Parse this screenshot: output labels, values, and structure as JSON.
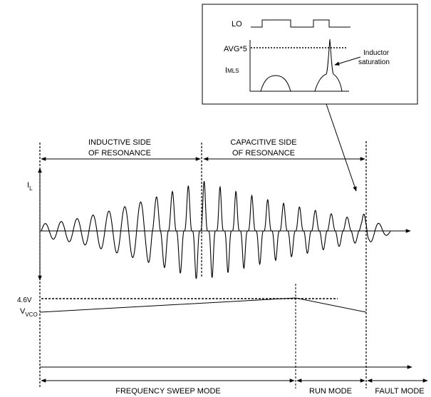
{
  "inset": {
    "lo_label": "LO",
    "avg_label": "AVG*5",
    "imls_main": "I",
    "imls_sub": "MLS",
    "inductor_saturation_line1": "Inductor",
    "inductor_saturation_line2": "saturation"
  },
  "regions": {
    "inductive_line1": "INDUCTIVE SIDE",
    "inductive_line2": "OF RESONANCE",
    "capacitive_line1": "CAPACITIVE SIDE",
    "capacitive_line2": "OF RESONANCE"
  },
  "il_main": "I",
  "il_sub": "L",
  "vco": {
    "threshold_label": "4.6V",
    "label_main": "V",
    "label_sub": "VCO"
  },
  "modes": {
    "frequency_sweep": "FREQUENCY SWEEP MODE",
    "run": "RUN MODE",
    "fault": "FAULT MODE"
  }
}
